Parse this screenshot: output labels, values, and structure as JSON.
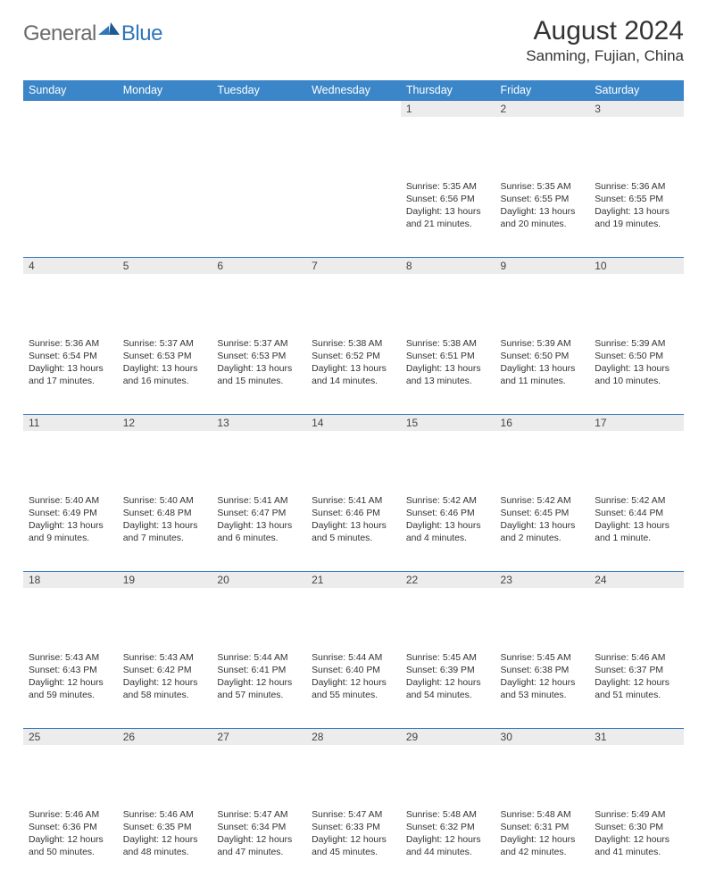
{
  "brand": {
    "part1": "General",
    "part2": "Blue"
  },
  "title": {
    "month": "August 2024",
    "location": "Sanming, Fujian, China"
  },
  "style": {
    "header_bg": "#3a86c8",
    "header_fg": "#ffffff",
    "daynum_bg": "#ececec",
    "rule_color": "#2f76ba",
    "text_color": "#333333",
    "logo_gray": "#6b6b6b",
    "logo_blue": "#2f76ba"
  },
  "weekdays": [
    "Sunday",
    "Monday",
    "Tuesday",
    "Wednesday",
    "Thursday",
    "Friday",
    "Saturday"
  ],
  "weeks": [
    [
      null,
      null,
      null,
      null,
      {
        "n": "1",
        "sr": "5:35 AM",
        "ss": "6:56 PM",
        "dl": "13 hours and 21 minutes."
      },
      {
        "n": "2",
        "sr": "5:35 AM",
        "ss": "6:55 PM",
        "dl": "13 hours and 20 minutes."
      },
      {
        "n": "3",
        "sr": "5:36 AM",
        "ss": "6:55 PM",
        "dl": "13 hours and 19 minutes."
      }
    ],
    [
      {
        "n": "4",
        "sr": "5:36 AM",
        "ss": "6:54 PM",
        "dl": "13 hours and 17 minutes."
      },
      {
        "n": "5",
        "sr": "5:37 AM",
        "ss": "6:53 PM",
        "dl": "13 hours and 16 minutes."
      },
      {
        "n": "6",
        "sr": "5:37 AM",
        "ss": "6:53 PM",
        "dl": "13 hours and 15 minutes."
      },
      {
        "n": "7",
        "sr": "5:38 AM",
        "ss": "6:52 PM",
        "dl": "13 hours and 14 minutes."
      },
      {
        "n": "8",
        "sr": "5:38 AM",
        "ss": "6:51 PM",
        "dl": "13 hours and 13 minutes."
      },
      {
        "n": "9",
        "sr": "5:39 AM",
        "ss": "6:50 PM",
        "dl": "13 hours and 11 minutes."
      },
      {
        "n": "10",
        "sr": "5:39 AM",
        "ss": "6:50 PM",
        "dl": "13 hours and 10 minutes."
      }
    ],
    [
      {
        "n": "11",
        "sr": "5:40 AM",
        "ss": "6:49 PM",
        "dl": "13 hours and 9 minutes."
      },
      {
        "n": "12",
        "sr": "5:40 AM",
        "ss": "6:48 PM",
        "dl": "13 hours and 7 minutes."
      },
      {
        "n": "13",
        "sr": "5:41 AM",
        "ss": "6:47 PM",
        "dl": "13 hours and 6 minutes."
      },
      {
        "n": "14",
        "sr": "5:41 AM",
        "ss": "6:46 PM",
        "dl": "13 hours and 5 minutes."
      },
      {
        "n": "15",
        "sr": "5:42 AM",
        "ss": "6:46 PM",
        "dl": "13 hours and 4 minutes."
      },
      {
        "n": "16",
        "sr": "5:42 AM",
        "ss": "6:45 PM",
        "dl": "13 hours and 2 minutes."
      },
      {
        "n": "17",
        "sr": "5:42 AM",
        "ss": "6:44 PM",
        "dl": "13 hours and 1 minute."
      }
    ],
    [
      {
        "n": "18",
        "sr": "5:43 AM",
        "ss": "6:43 PM",
        "dl": "12 hours and 59 minutes."
      },
      {
        "n": "19",
        "sr": "5:43 AM",
        "ss": "6:42 PM",
        "dl": "12 hours and 58 minutes."
      },
      {
        "n": "20",
        "sr": "5:44 AM",
        "ss": "6:41 PM",
        "dl": "12 hours and 57 minutes."
      },
      {
        "n": "21",
        "sr": "5:44 AM",
        "ss": "6:40 PM",
        "dl": "12 hours and 55 minutes."
      },
      {
        "n": "22",
        "sr": "5:45 AM",
        "ss": "6:39 PM",
        "dl": "12 hours and 54 minutes."
      },
      {
        "n": "23",
        "sr": "5:45 AM",
        "ss": "6:38 PM",
        "dl": "12 hours and 53 minutes."
      },
      {
        "n": "24",
        "sr": "5:46 AM",
        "ss": "6:37 PM",
        "dl": "12 hours and 51 minutes."
      }
    ],
    [
      {
        "n": "25",
        "sr": "5:46 AM",
        "ss": "6:36 PM",
        "dl": "12 hours and 50 minutes."
      },
      {
        "n": "26",
        "sr": "5:46 AM",
        "ss": "6:35 PM",
        "dl": "12 hours and 48 minutes."
      },
      {
        "n": "27",
        "sr": "5:47 AM",
        "ss": "6:34 PM",
        "dl": "12 hours and 47 minutes."
      },
      {
        "n": "28",
        "sr": "5:47 AM",
        "ss": "6:33 PM",
        "dl": "12 hours and 45 minutes."
      },
      {
        "n": "29",
        "sr": "5:48 AM",
        "ss": "6:32 PM",
        "dl": "12 hours and 44 minutes."
      },
      {
        "n": "30",
        "sr": "5:48 AM",
        "ss": "6:31 PM",
        "dl": "12 hours and 42 minutes."
      },
      {
        "n": "31",
        "sr": "5:49 AM",
        "ss": "6:30 PM",
        "dl": "12 hours and 41 minutes."
      }
    ]
  ],
  "labels": {
    "sunrise": "Sunrise: ",
    "sunset": "Sunset: ",
    "daylight": "Daylight: "
  }
}
